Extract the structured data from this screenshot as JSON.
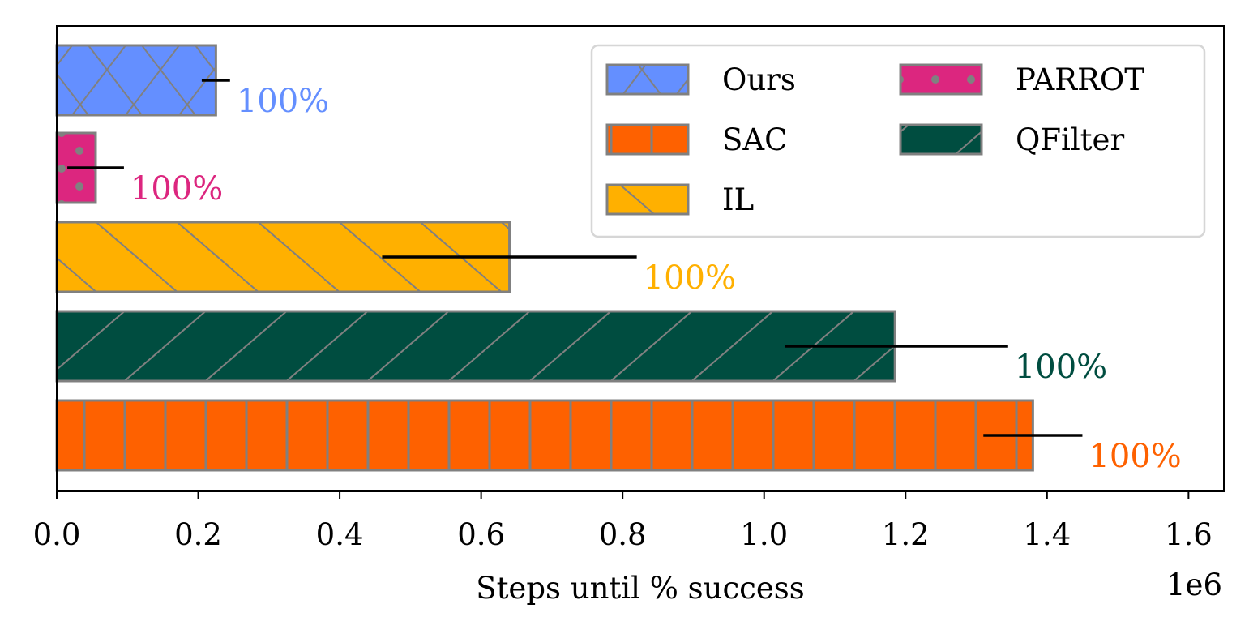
{
  "chart_data": {
    "type": "bar",
    "orientation": "horizontal",
    "xlabel": "Steps until % success",
    "axis_exponent_label": "1e6",
    "xlim": [
      0,
      1.65
    ],
    "xticks": [
      0.0,
      0.2,
      0.4,
      0.6,
      0.8,
      1.0,
      1.2,
      1.4,
      1.6
    ],
    "xtick_labels": [
      "0.0",
      "0.2",
      "0.4",
      "0.6",
      "0.8",
      "1.0",
      "1.2",
      "1.4",
      "1.6"
    ],
    "ylabel": "",
    "grid": false,
    "legend_position": "top-right",
    "legend_columns": 2,
    "series": [
      {
        "name": "Ours",
        "value": 0.225,
        "err_low": 0.205,
        "err_high": 0.245,
        "label": "100%",
        "color": "#648FFF",
        "hatch": "crosshatch-x"
      },
      {
        "name": "PARROT",
        "value": 0.055,
        "err_low": 0.015,
        "err_high": 0.095,
        "label": "100%",
        "color": "#DC267F",
        "hatch": "dots"
      },
      {
        "name": "IL",
        "value": 0.64,
        "err_low": 0.46,
        "err_high": 0.82,
        "label": "100%",
        "color": "#FFB000",
        "hatch": "backslash"
      },
      {
        "name": "QFilter",
        "value": 1.185,
        "err_low": 1.03,
        "err_high": 1.345,
        "label": "100%",
        "color": "#004D40",
        "hatch": "slash"
      },
      {
        "name": "SAC",
        "value": 1.38,
        "err_low": 1.31,
        "err_high": 1.45,
        "label": "100%",
        "color": "#FE6100",
        "hatch": "vertical"
      }
    ],
    "legend_order": [
      "Ours",
      "SAC",
      "IL",
      "PARROT",
      "QFilter"
    ]
  }
}
